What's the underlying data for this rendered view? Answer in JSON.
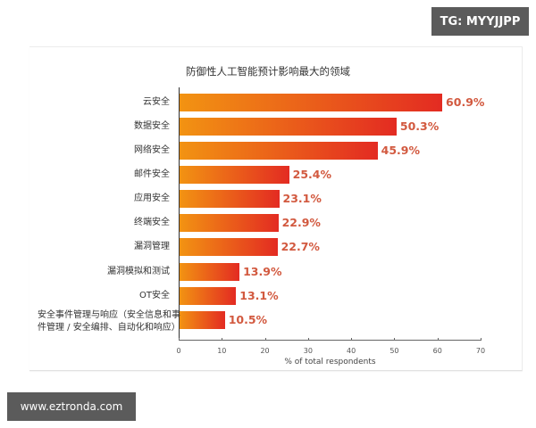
{
  "watermarks": {
    "top_right": "TG: MYYJJPP",
    "bottom_left": "www.eztronda.com"
  },
  "colors": {
    "bar_start": "#f29312",
    "bar_end": "#e32b22",
    "value_label": "#d2593f"
  },
  "chart_data": {
    "type": "bar",
    "orientation": "horizontal",
    "title": "防御性人工智能预计影响最大的领域",
    "xlabel": "% of total respondents",
    "ylabel": "",
    "xlim": [
      0,
      70
    ],
    "xticks": [
      0,
      10,
      20,
      30,
      40,
      50,
      60,
      70
    ],
    "grid": false,
    "categories": [
      "云安全",
      "数据安全",
      "网络安全",
      "邮件安全",
      "应用安全",
      "终端安全",
      "漏洞管理",
      "漏洞模拟和测试",
      "OT安全",
      "安全事件管理与响应（安全信息和事件管理 / 安全编排、自动化和响应）"
    ],
    "category_lines": [
      [
        "云安全"
      ],
      [
        "数据安全"
      ],
      [
        "网络安全"
      ],
      [
        "邮件安全"
      ],
      [
        "应用安全"
      ],
      [
        "终端安全"
      ],
      [
        "漏洞管理"
      ],
      [
        "漏洞模拟和测试"
      ],
      [
        "OT安全"
      ],
      [
        "安全事件管理与响应（安全信息和事",
        "件管理 / 安全编排、自动化和响应）"
      ]
    ],
    "values": [
      60.9,
      50.3,
      45.9,
      25.4,
      23.1,
      22.9,
      22.7,
      13.9,
      13.1,
      10.5
    ],
    "value_labels": [
      "60.9%",
      "50.3%",
      "45.9%",
      "25.4%",
      "23.1%",
      "22.9%",
      "22.7%",
      "13.9%",
      "13.1%",
      "10.5%"
    ]
  }
}
